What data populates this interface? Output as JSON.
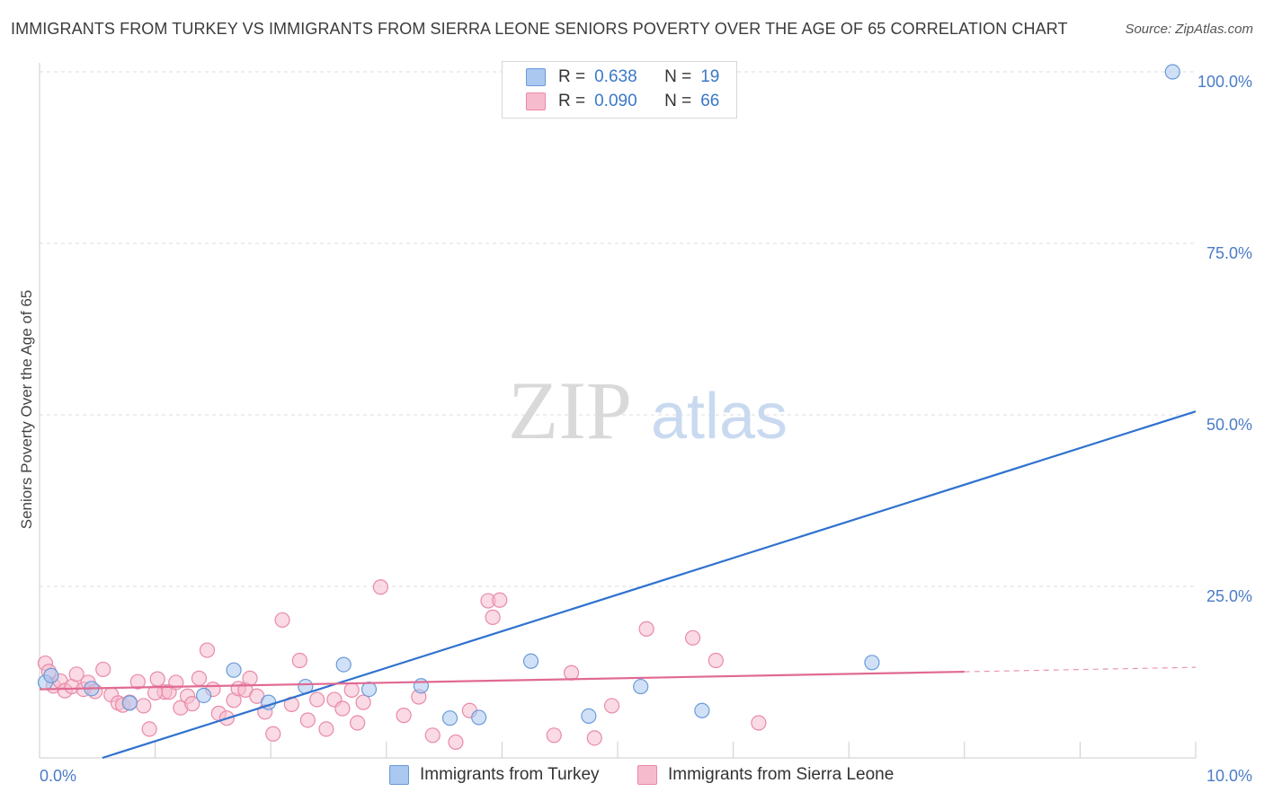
{
  "chart_data": {
    "type": "scatter",
    "title": "IMMIGRANTS FROM TURKEY VS IMMIGRANTS FROM SIERRA LEONE SENIORS POVERTY OVER THE AGE OF 65 CORRELATION CHART",
    "source": "Source: ZipAtlas.com",
    "ylabel": "Seniors Poverty Over the Age of 65",
    "xlabel": "",
    "xlim": [
      0,
      10
    ],
    "ylim": [
      0,
      100
    ],
    "x_ticks": [
      "0.0%",
      "10.0%"
    ],
    "y_ticks": [
      {
        "value": 100,
        "label": "100.0%"
      },
      {
        "value": 75,
        "label": "75.0%"
      },
      {
        "value": 50,
        "label": "50.0%"
      },
      {
        "value": 25,
        "label": "25.0%"
      }
    ],
    "watermark": {
      "zip": "ZIP",
      "atlas": "atlas"
    },
    "legend": [
      {
        "r_label": "R =",
        "r_value": "0.638",
        "n_label": "N =",
        "n_value": "19"
      },
      {
        "r_label": "R =",
        "r_value": "0.090",
        "n_label": "N =",
        "n_value": "66"
      }
    ],
    "colors": {
      "turkey_fill": "#aac8f0",
      "turkey_stroke": "#6a9ad8",
      "turkey_line": "#2f72cf",
      "sl_fill": "#f6bccd",
      "sl_stroke": "#e98aa7",
      "sl_line": "#e06a92"
    },
    "series": [
      {
        "name": "Immigrants from Turkey",
        "trend": {
          "x0": 0,
          "y0": -2.9,
          "x1": 10,
          "y1": 50.5,
          "dashed_from": null
        },
        "points": [
          [
            0.05,
            11.0
          ],
          [
            0.45,
            10.1
          ],
          [
            0.78,
            8.0
          ],
          [
            1.42,
            9.1
          ],
          [
            1.68,
            12.8
          ],
          [
            1.98,
            8.1
          ],
          [
            2.3,
            10.4
          ],
          [
            2.63,
            13.6
          ],
          [
            2.85,
            10.0
          ],
          [
            3.3,
            10.5
          ],
          [
            3.55,
            5.8
          ],
          [
            3.8,
            5.9
          ],
          [
            4.25,
            14.1
          ],
          [
            4.75,
            6.1
          ],
          [
            5.2,
            10.4
          ],
          [
            5.73,
            6.9
          ],
          [
            7.2,
            13.9
          ],
          [
            9.8,
            100.0
          ],
          [
            0.1,
            12.0
          ]
        ]
      },
      {
        "name": "Immigrants from Sierra Leone",
        "trend": {
          "x0": 0,
          "y0": 10.0,
          "x1": 10,
          "y1": 13.2,
          "dashed_from": 8.0
        },
        "points": [
          [
            0.05,
            13.8
          ],
          [
            0.08,
            12.6
          ],
          [
            0.12,
            10.5
          ],
          [
            0.18,
            11.2
          ],
          [
            0.22,
            9.8
          ],
          [
            0.28,
            10.4
          ],
          [
            0.32,
            12.2
          ],
          [
            0.38,
            10.0
          ],
          [
            0.42,
            11.0
          ],
          [
            0.48,
            9.7
          ],
          [
            0.55,
            12.9
          ],
          [
            0.62,
            9.2
          ],
          [
            0.68,
            8.0
          ],
          [
            0.72,
            7.7
          ],
          [
            0.78,
            8.1
          ],
          [
            0.85,
            11.1
          ],
          [
            0.9,
            7.6
          ],
          [
            0.95,
            4.2
          ],
          [
            1.02,
            11.5
          ],
          [
            1.08,
            9.6
          ],
          [
            1.12,
            9.6
          ],
          [
            1.18,
            11.0
          ],
          [
            1.22,
            7.3
          ],
          [
            1.28,
            9.0
          ],
          [
            1.32,
            7.9
          ],
          [
            1.38,
            11.6
          ],
          [
            1.45,
            15.7
          ],
          [
            1.5,
            10.0
          ],
          [
            1.55,
            6.5
          ],
          [
            1.62,
            5.8
          ],
          [
            1.68,
            8.4
          ],
          [
            1.72,
            10.1
          ],
          [
            1.78,
            9.9
          ],
          [
            1.82,
            11.6
          ],
          [
            1.88,
            9.0
          ],
          [
            1.95,
            6.7
          ],
          [
            2.02,
            3.5
          ],
          [
            2.1,
            20.1
          ],
          [
            2.18,
            7.8
          ],
          [
            2.25,
            14.2
          ],
          [
            2.32,
            5.5
          ],
          [
            2.4,
            8.5
          ],
          [
            2.48,
            4.2
          ],
          [
            2.55,
            8.5
          ],
          [
            2.62,
            7.2
          ],
          [
            2.7,
            9.9
          ],
          [
            2.75,
            5.1
          ],
          [
            2.8,
            8.1
          ],
          [
            2.95,
            24.9
          ],
          [
            3.15,
            6.2
          ],
          [
            3.28,
            8.9
          ],
          [
            3.4,
            3.3
          ],
          [
            3.6,
            2.3
          ],
          [
            3.72,
            6.9
          ],
          [
            3.88,
            22.9
          ],
          [
            3.92,
            20.5
          ],
          [
            3.98,
            23.0
          ],
          [
            4.45,
            3.3
          ],
          [
            4.6,
            12.4
          ],
          [
            4.8,
            2.9
          ],
          [
            4.95,
            7.6
          ],
          [
            5.25,
            18.8
          ],
          [
            5.65,
            17.5
          ],
          [
            5.85,
            14.2
          ],
          [
            6.22,
            5.1
          ],
          [
            1.0,
            9.5
          ]
        ]
      }
    ]
  }
}
